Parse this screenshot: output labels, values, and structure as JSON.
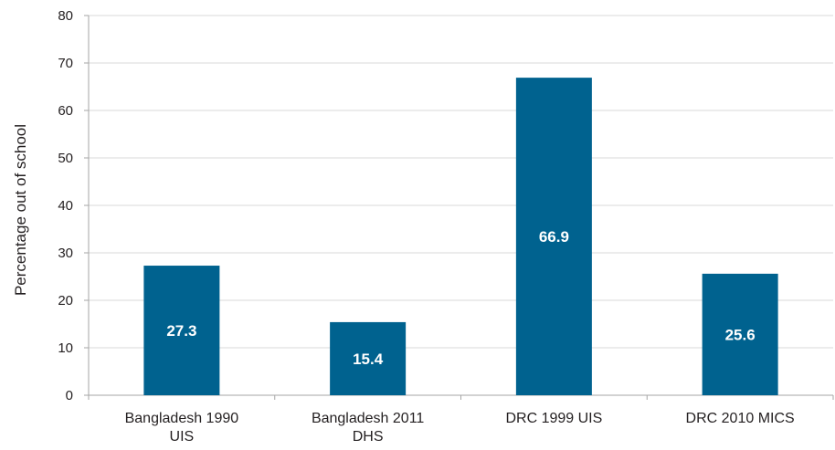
{
  "chart_data": {
    "type": "bar",
    "categories": [
      [
        "Bangladesh 1990",
        "UIS"
      ],
      [
        "Bangladesh 2011",
        "DHS"
      ],
      [
        "DRC 1999 UIS"
      ],
      [
        "DRC 2010 MICS"
      ]
    ],
    "values": [
      27.3,
      15.4,
      66.9,
      25.6
    ],
    "data_labels": [
      "27.3",
      "15.4",
      "66.9",
      "25.6"
    ],
    "title": "",
    "xlabel": "",
    "ylabel": "Percentage  out of school",
    "ylim": [
      0,
      80
    ],
    "yticks": [
      "0",
      "10",
      "20",
      "30",
      "40",
      "50",
      "60",
      "70",
      "80"
    ],
    "grid": true,
    "legend": "none",
    "bar_color": "#00628f",
    "grid_color": "#d9d9d9",
    "axis_color": "#a6a6a6"
  }
}
